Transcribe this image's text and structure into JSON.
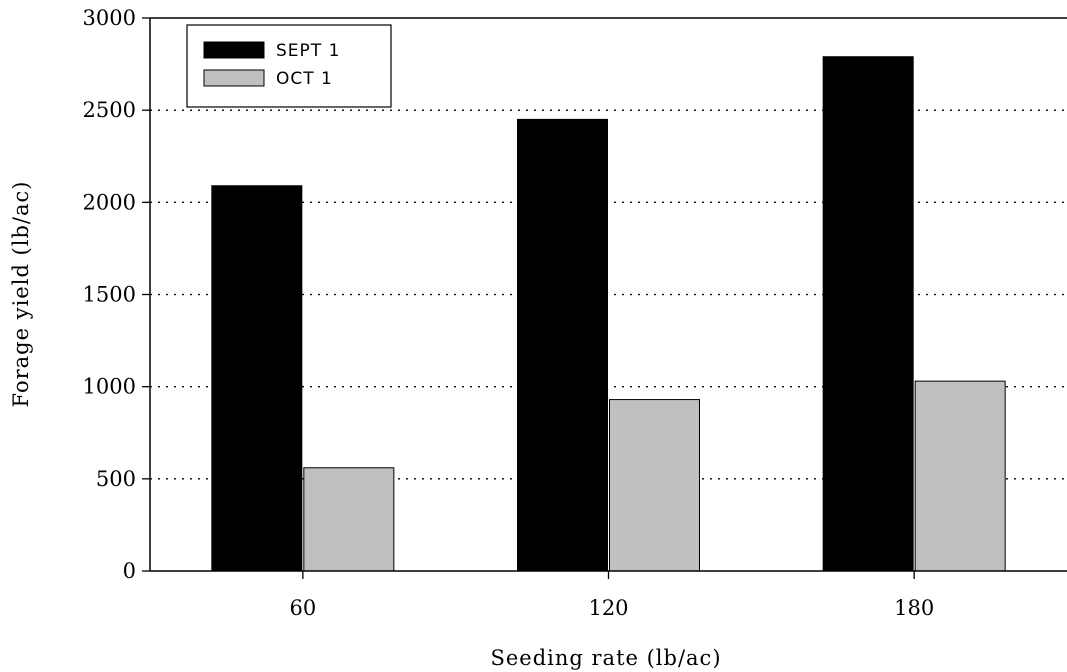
{
  "chart_data": {
    "type": "bar",
    "title": "",
    "xlabel": "Seeding rate (lb/ac)",
    "ylabel": "Forage yield (lb/ac)",
    "categories": [
      "60",
      "120",
      "180"
    ],
    "series": [
      {
        "name": "SEPT 1",
        "values": [
          2090,
          2450,
          2790
        ],
        "color": "#000000"
      },
      {
        "name": "OCT 1",
        "values": [
          560,
          930,
          1030
        ],
        "color": "#c0c0c0"
      }
    ],
    "ylim": [
      0,
      3000
    ],
    "yticks": [
      0,
      500,
      1000,
      1500,
      2000,
      2500,
      3000
    ],
    "grid": "horizontal dotted",
    "legend_position": "top-left"
  }
}
